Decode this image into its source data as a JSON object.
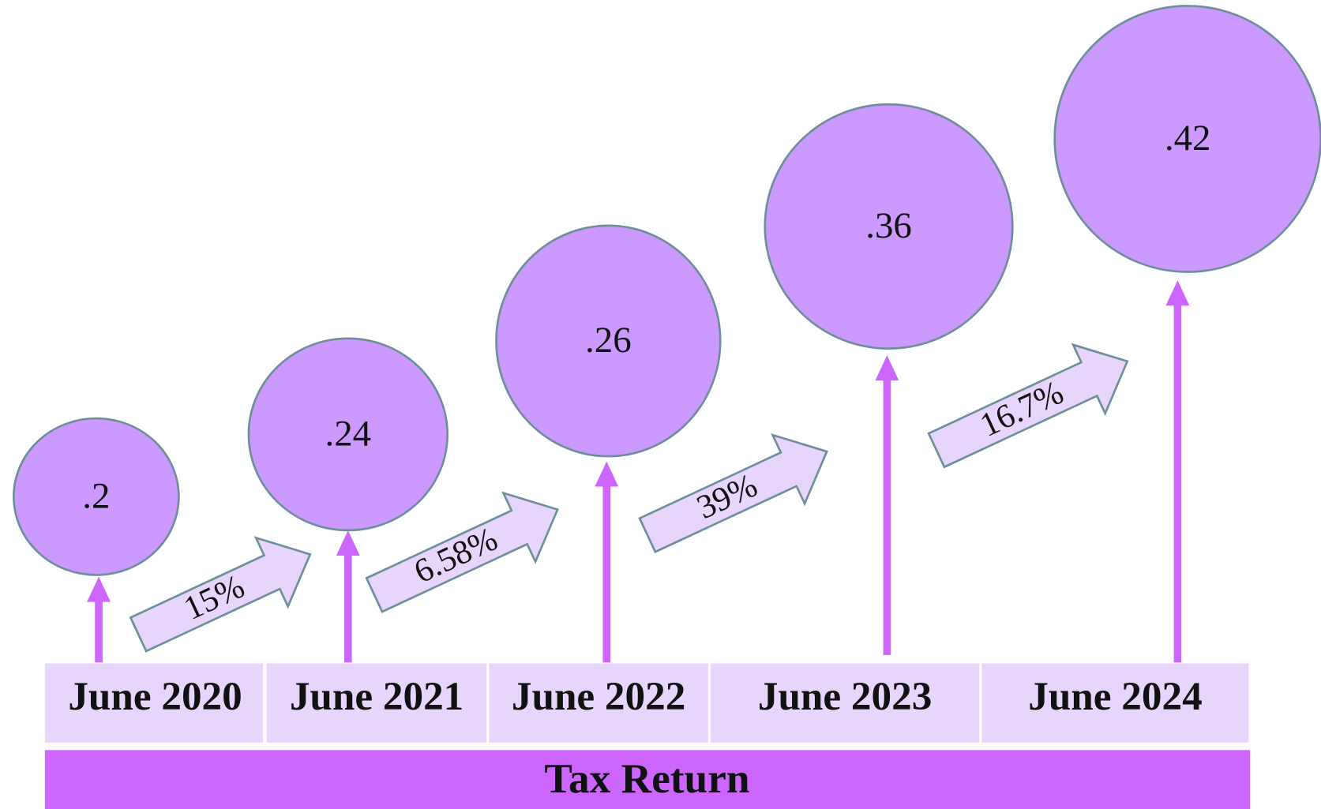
{
  "periods": [
    "June 2020",
    "June 2021",
    "June 2022",
    "June 2023",
    "June 2024"
  ],
  "circles": [
    ".2",
    ".24",
    ".26",
    ".36",
    ".42"
  ],
  "changes": [
    "15%",
    "6.58%",
    "39%",
    "16.7%"
  ],
  "footer": "Tax Return"
}
